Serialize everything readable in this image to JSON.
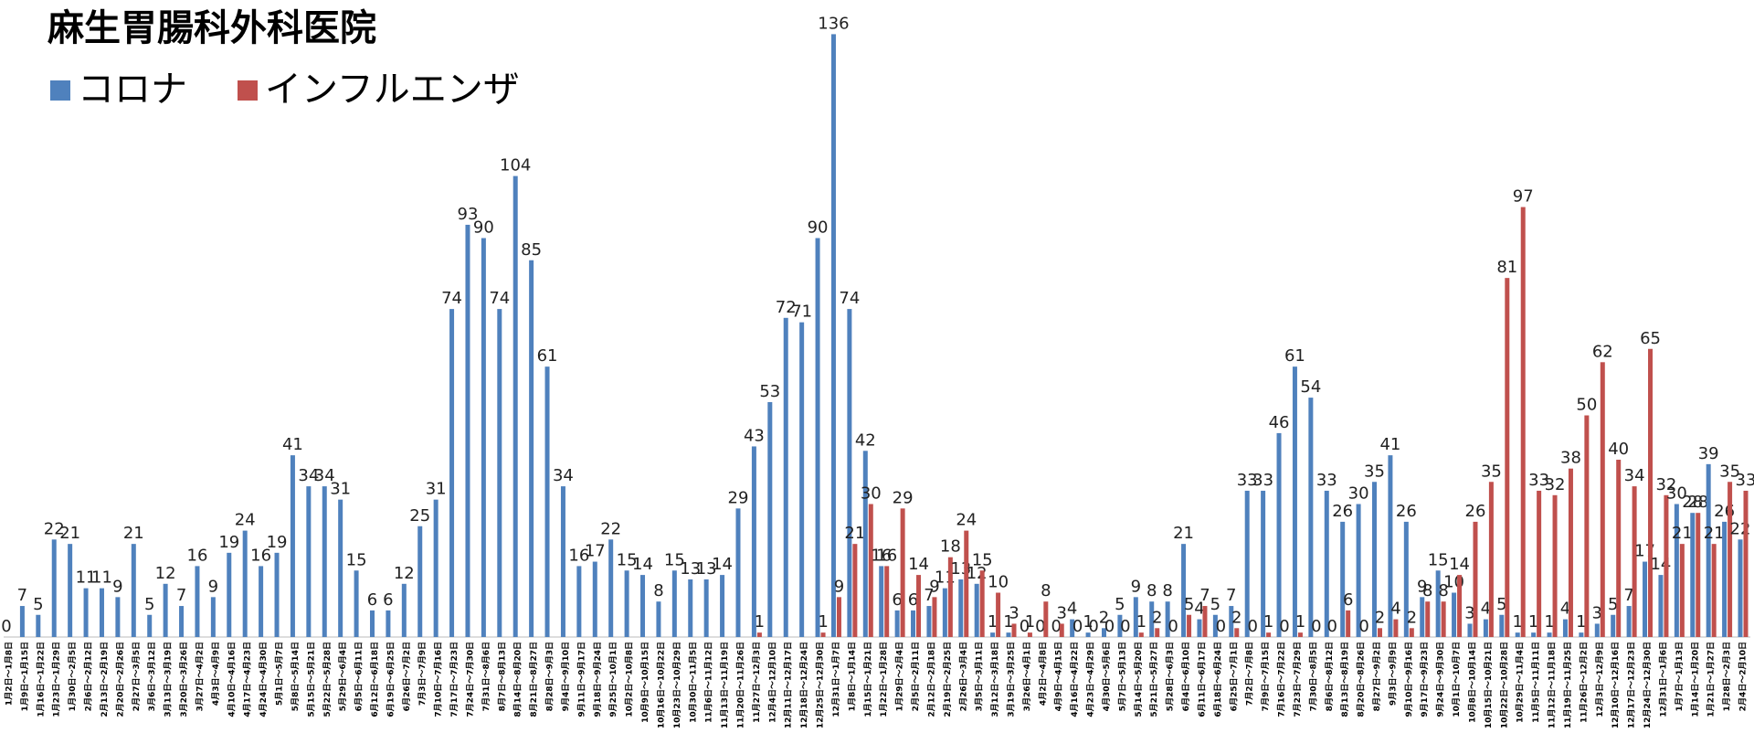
{
  "chart_data": {
    "type": "bar",
    "title": "麻生胃腸科外科医院",
    "legend": "top-left",
    "grid": false,
    "ylim": [
      0,
      140
    ],
    "categories": [
      "1月2日～1月8日",
      "1月9日～1月15日",
      "1月16日～1月22日",
      "1月23日～1月29日",
      "1月30日～2月5日",
      "2月6日～2月12日",
      "2月13日～2月19日",
      "2月20日～2月26日",
      "2月27日～3月5日",
      "3月6日～3月12日",
      "3月13日～3月19日",
      "3月20日～3月26日",
      "3月27日～4月2日",
      "4月3日～4月9日",
      "4月10日～4月16日",
      "4月17日～4月23日",
      "4月24日～4月30日",
      "5月1日～5月7日",
      "5月8日～5月14日",
      "5月15日～5月21日",
      "5月22日～5月28日",
      "5月29日～6月4日",
      "6月5日～6月11日",
      "6月12日～6月18日",
      "6月19日～6月25日",
      "6月26日～7月2日",
      "7月3日～7月9日",
      "7月10日～7月16日",
      "7月17日～7月23日",
      "7月24日～7月30日",
      "7月31日～8月6日",
      "8月7日～8月13日",
      "8月14日～8月20日",
      "8月21日～8月27日",
      "8月28日～9月3日",
      "9月4日～9月10日",
      "9月11日～9月17日",
      "9月18日～9月24日",
      "9月25日～10月1日",
      "10月2日～10月8日",
      "10月9日～10月15日",
      "10月16日～10月22日",
      "10月23日～10月29日",
      "10月30日～11月5日",
      "11月6日～11月12日",
      "11月13日～11月19日",
      "11月20日～11月26日",
      "11月27日～12月3日",
      "12月4日～12月10日",
      "12月11日～12月17日",
      "12月18日～12月24日",
      "12月25日～12月30日",
      "12月31日～1月7日",
      "1月8日～1月14日",
      "1月15日～1月21日",
      "1月22日～1月28日",
      "1月29日～2月4日",
      "2月5日～2月11日",
      "2月12日～2月18日",
      "2月19日～2月25日",
      "2月26日～3月4日",
      "3月5日～3月11日",
      "3月12日～3月18日",
      "3月19日～3月25日",
      "3月26日～4月1日",
      "4月2日～4月8日",
      "4月9日～4月15日",
      "4月16日～4月22日",
      "4月23日～4月29日",
      "4月30日～5月6日",
      "5月7日～5月13日",
      "5月14日～5月20日",
      "5月21日～5月27日",
      "5月28日～6月3日",
      "6月4日～6月10日",
      "6月11日～6月17日",
      "6月18日～6月24日",
      "6月25日～7月1日",
      "7月2日～7月8日",
      "7月9日～7月15日",
      "7月16日～7月22日",
      "7月23日～7月29日",
      "7月30日～8月5日",
      "8月6日～8月12日",
      "8月13日～8月19日",
      "8月20日～8月26日",
      "8月27日～9月2日",
      "9月3日～9月9日",
      "9月10日～9月16日",
      "9月17日～9月23日",
      "9月24日～9月30日",
      "10月1日～10月7日",
      "10月8日～10月14日",
      "10月15日～10月21日",
      "10月22日～10月28日",
      "10月29日～11月4日",
      "11月5日～11月11日",
      "11月12日～11月18日",
      "11月19日～11月25日",
      "11月26日～12月2日",
      "12月3日～12月9日",
      "12月10日～12月16日",
      "12月17日～12月23日",
      "12月24日～12月30日",
      "12月31日～1月6日",
      "1月7日～1月13日",
      "1月14日～1月20日",
      "1月21日～1月27日",
      "1月28日～2月3日",
      "2月4日～2月10日"
    ],
    "series": [
      {
        "name": "コロナ",
        "color": "#4f81bd",
        "values": [
          0,
          7,
          5,
          22,
          21,
          11,
          11,
          9,
          21,
          5,
          12,
          7,
          16,
          9,
          19,
          24,
          16,
          19,
          41,
          34,
          34,
          31,
          15,
          6,
          6,
          12,
          25,
          31,
          74,
          93,
          90,
          74,
          104,
          85,
          61,
          34,
          16,
          17,
          22,
          15,
          14,
          8,
          15,
          13,
          13,
          14,
          29,
          43,
          53,
          72,
          71,
          90,
          136,
          74,
          42,
          16,
          6,
          6,
          7,
          11,
          13,
          12,
          1,
          1,
          0,
          0,
          0,
          4,
          1,
          2,
          5,
          9,
          8,
          8,
          21,
          4,
          5,
          7,
          33,
          33,
          46,
          61,
          54,
          33,
          26,
          30,
          35,
          41,
          26,
          9,
          15,
          10,
          3,
          4,
          5,
          1,
          1,
          1,
          4,
          1,
          3,
          5,
          7,
          17,
          14,
          30,
          28,
          39,
          26,
          22
        ]
      },
      {
        "name": "インフルエンザ",
        "color": "#c0504d",
        "values": [
          null,
          null,
          null,
          null,
          null,
          null,
          null,
          null,
          null,
          null,
          null,
          null,
          null,
          null,
          null,
          null,
          null,
          null,
          null,
          null,
          null,
          null,
          null,
          null,
          null,
          null,
          null,
          null,
          null,
          null,
          null,
          null,
          null,
          null,
          null,
          null,
          null,
          null,
          null,
          null,
          null,
          null,
          null,
          null,
          null,
          null,
          null,
          1,
          null,
          null,
          null,
          1,
          9,
          21,
          30,
          16,
          29,
          14,
          9,
          18,
          24,
          15,
          10,
          3,
          1,
          8,
          3,
          0,
          0,
          0,
          0,
          1,
          2,
          0,
          5,
          7,
          0,
          2,
          0,
          1,
          0,
          1,
          0,
          0,
          6,
          0,
          2,
          4,
          2,
          8,
          8,
          14,
          26,
          35,
          81,
          97,
          33,
          32,
          38,
          50,
          62,
          40,
          34,
          65,
          32,
          21,
          28,
          21,
          35,
          33
        ]
      }
    ]
  }
}
